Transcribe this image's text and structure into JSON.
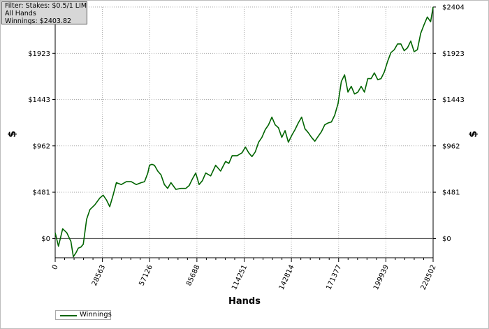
{
  "info_box": {
    "filter": "Filter: Stakes: $0.5/1 LIM",
    "hands": "All Hands",
    "winnings": "Winnings: $2403.82"
  },
  "legend": {
    "label": "Winnings"
  },
  "chart_data": {
    "type": "line",
    "title": "",
    "xlabel": "Hands",
    "ylabel": "$",
    "xlim": [
      0,
      228502
    ],
    "ylim": [
      -200,
      2404
    ],
    "x_ticks": [
      "0",
      "28563",
      "57126",
      "85688",
      "114251",
      "142814",
      "171377",
      "199939",
      "228502"
    ],
    "y_ticks": [
      {
        "value": 0,
        "label": "$0"
      },
      {
        "value": 481,
        "label": "$481"
      },
      {
        "value": 962,
        "label": "$962"
      },
      {
        "value": 1443,
        "label": "$1443"
      },
      {
        "value": 1923,
        "label": "$1923"
      },
      {
        "value": 2404,
        "label": "$2404"
      }
    ],
    "grid": true,
    "legend_position": "bottom-left",
    "colors": {
      "line": "#006400",
      "grid": "#aaaaaa",
      "zero": "#444444"
    },
    "series": [
      {
        "name": "Winnings",
        "x": [
          0,
          2000,
          4500,
          7000,
          9500,
          11000,
          12500,
          14000,
          15500,
          17000,
          19000,
          21000,
          24000,
          27000,
          29000,
          31000,
          33000,
          35000,
          37000,
          40000,
          43000,
          46000,
          49000,
          52000,
          54000,
          56000,
          57000,
          58500,
          60000,
          62000,
          64000,
          66000,
          68000,
          70000,
          73000,
          76000,
          79000,
          81000,
          83000,
          85000,
          87000,
          89000,
          91000,
          94000,
          97000,
          100000,
          103000,
          105000,
          107000,
          110000,
          113000,
          115000,
          117000,
          119000,
          121000,
          123000,
          125000,
          127000,
          129000,
          131000,
          133000,
          135000,
          137000,
          139000,
          141000,
          143000,
          145000,
          147000,
          149000,
          151000,
          153000,
          155000,
          157000,
          159000,
          161000,
          163000,
          165000,
          167000,
          169000,
          171000,
          173000,
          175000,
          177000,
          179000,
          181000,
          183000,
          185000,
          187000,
          189000,
          191000,
          193000,
          195000,
          197000,
          199000,
          201000,
          203000,
          205000,
          207000,
          209000,
          211000,
          213000,
          215000,
          217000,
          219000,
          221000,
          223000,
          225000,
          227000,
          228502
        ],
        "values": [
          60,
          -80,
          100,
          60,
          -30,
          -190,
          -150,
          -100,
          -90,
          -60,
          200,
          300,
          350,
          420,
          450,
          400,
          330,
          450,
          580,
          560,
          590,
          590,
          560,
          580,
          590,
          680,
          760,
          770,
          760,
          700,
          660,
          560,
          520,
          580,
          510,
          520,
          520,
          550,
          620,
          680,
          560,
          600,
          680,
          650,
          760,
          700,
          800,
          780,
          860,
          860,
          890,
          950,
          890,
          850,
          900,
          1000,
          1050,
          1130,
          1180,
          1260,
          1180,
          1150,
          1050,
          1120,
          1000,
          1070,
          1130,
          1200,
          1260,
          1140,
          1100,
          1050,
          1010,
          1060,
          1110,
          1180,
          1200,
          1210,
          1280,
          1400,
          1630,
          1700,
          1520,
          1580,
          1500,
          1520,
          1580,
          1520,
          1660,
          1660,
          1720,
          1650,
          1660,
          1730,
          1840,
          1930,
          1960,
          2020,
          2020,
          1950,
          1980,
          2050,
          1940,
          1960,
          2130,
          2220,
          2300,
          2250,
          2404
        ]
      }
    ]
  }
}
